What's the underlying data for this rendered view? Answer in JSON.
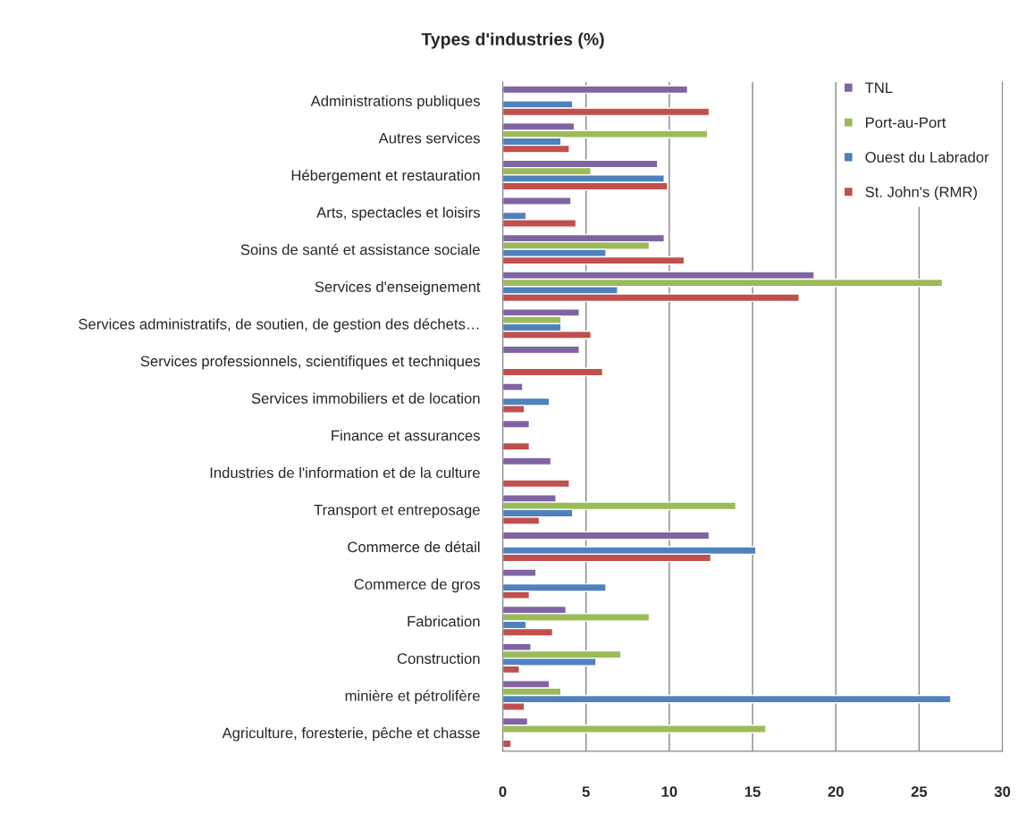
{
  "chart_data": {
    "type": "bar",
    "orientation": "horizontal",
    "title": "Types d'industries (%)",
    "categories": [
      "Administrations publiques",
      "Autres services",
      "Hébergement et restauration",
      "Arts, spectacles et loisirs",
      "Soins de santé et assistance sociale",
      "Services d'enseignement",
      "Services administratifs, de soutien, de gestion des déchets…",
      "Services professionnels, scientifiques et techniques",
      "Services immobiliers et de location",
      "Finance et assurances",
      "Industries de l'information et de la culture",
      "Transport et entreposage",
      "Commerce de détail",
      "Commerce de gros",
      "Fabrication",
      "Construction",
      "minière et pétrolifère",
      "Agriculture, foresterie, pêche et chasse"
    ],
    "series": [
      {
        "name": "TNL",
        "color": "#8064a2",
        "values": [
          11.1,
          4.3,
          9.3,
          4.1,
          9.7,
          18.7,
          4.6,
          4.6,
          1.2,
          1.6,
          2.9,
          3.2,
          12.4,
          2.0,
          3.8,
          1.7,
          2.8,
          1.5
        ]
      },
      {
        "name": "Port-au-Port",
        "color": "#9bbb59",
        "values": [
          null,
          12.3,
          5.3,
          null,
          8.8,
          26.4,
          3.5,
          null,
          null,
          null,
          null,
          14.0,
          null,
          null,
          8.8,
          7.1,
          3.5,
          15.8
        ]
      },
      {
        "name": "Ouest du Labrador",
        "color": "#4f81bd",
        "values": [
          4.2,
          3.5,
          9.7,
          1.4,
          6.2,
          6.9,
          3.5,
          null,
          2.8,
          null,
          null,
          4.2,
          15.2,
          6.2,
          1.4,
          5.6,
          26.9,
          null
        ]
      },
      {
        "name": "St. John's (RMR)",
        "color": "#c0504d",
        "values": [
          12.4,
          4.0,
          9.9,
          4.4,
          10.9,
          17.8,
          5.3,
          6.0,
          1.3,
          1.6,
          4.0,
          2.2,
          12.5,
          1.6,
          3.0,
          1.0,
          1.3,
          0.5
        ]
      }
    ],
    "xlim": [
      0,
      30
    ],
    "xticks": [
      0,
      5,
      10,
      15,
      20,
      25,
      30
    ],
    "grid": "x",
    "legend": "top right"
  }
}
